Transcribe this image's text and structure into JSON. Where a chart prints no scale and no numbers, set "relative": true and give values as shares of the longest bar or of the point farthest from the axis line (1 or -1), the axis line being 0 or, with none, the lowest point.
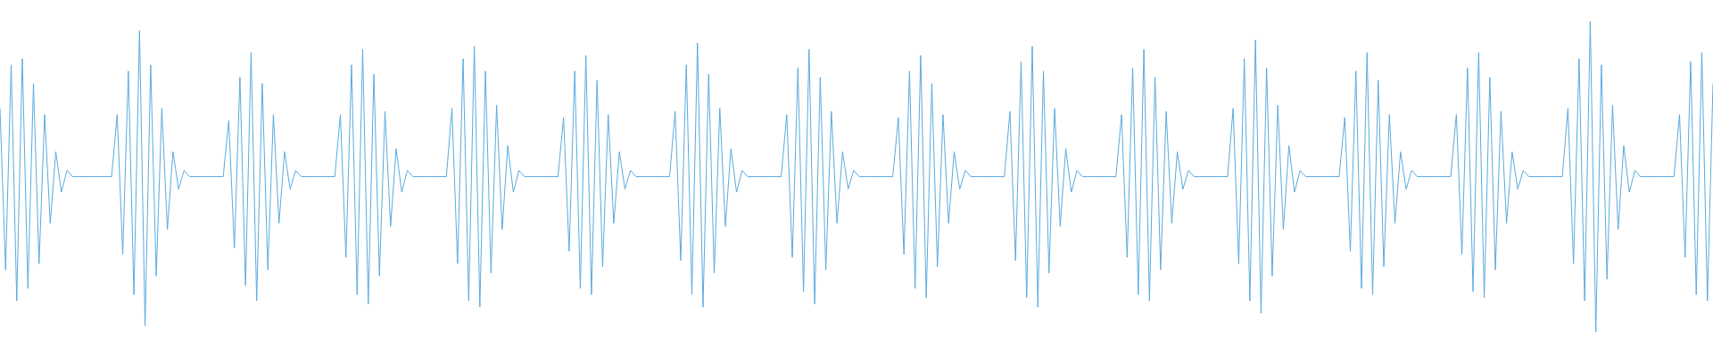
{
  "chart_data": {
    "type": "line",
    "relative": true,
    "color": "#5aaae0",
    "marker": "none",
    "line_style": "solid",
    "legend": false,
    "categories": [
      null,
      null,
      null,
      null,
      null,
      null,
      null,
      null,
      null,
      null,
      null,
      null,
      null,
      null,
      null,
      null,
      null,
      null,
      null,
      null,
      null,
      null,
      null,
      null,
      null,
      null,
      null,
      null,
      null,
      null,
      null,
      null,
      null,
      null,
      null,
      null,
      null,
      null,
      null,
      null,
      null,
      null,
      null,
      null,
      null,
      null,
      null,
      null,
      null,
      null,
      null,
      null,
      null,
      null,
      null,
      null,
      null,
      null,
      null,
      null,
      null,
      null,
      null,
      null,
      null,
      null,
      null,
      null,
      null,
      null,
      null,
      null,
      null,
      null,
      null,
      null,
      null,
      null,
      null,
      null,
      null,
      null,
      null,
      null,
      null,
      null,
      null,
      null,
      null,
      null,
      null,
      null,
      null,
      null,
      null,
      null,
      null,
      null,
      null,
      null,
      null,
      null,
      null,
      null,
      null,
      null,
      null,
      null,
      null,
      null,
      null,
      null,
      null,
      null,
      null,
      null,
      null,
      null,
      null,
      null,
      null,
      null,
      null,
      null,
      null,
      null,
      null,
      null,
      null,
      null,
      null,
      null,
      null,
      null,
      null,
      null,
      null,
      null,
      null,
      null,
      null,
      null,
      null,
      null,
      null,
      null,
      null,
      null,
      null,
      null,
      null,
      null,
      null,
      null,
      null,
      null,
      null,
      null,
      null,
      null,
      null,
      null,
      null,
      null,
      null,
      null,
      null,
      null,
      null,
      null,
      null,
      null,
      null,
      null,
      null,
      null,
      null,
      null,
      null,
      null,
      null,
      null,
      null,
      null,
      null,
      null,
      null,
      null,
      null,
      null,
      null,
      null,
      null,
      null,
      null,
      null,
      null,
      null,
      null,
      null,
      null,
      null,
      null,
      null,
      null,
      null,
      null,
      null,
      null,
      null,
      null,
      null,
      null,
      null,
      null,
      null,
      null,
      null,
      null,
      null,
      null,
      null,
      null,
      null,
      null,
      null,
      null,
      null,
      null,
      null,
      null,
      null,
      null,
      null,
      null,
      null,
      null,
      null,
      null,
      null,
      null,
      null,
      null,
      null,
      null,
      null,
      null,
      null,
      null,
      null,
      null,
      null,
      null,
      null,
      null,
      null,
      null,
      null,
      null,
      null,
      null,
      null,
      null,
      null,
      null,
      null,
      null,
      null,
      null,
      null,
      null,
      null,
      null,
      null,
      null,
      null,
      null,
      null,
      null,
      null,
      null,
      null,
      null,
      null,
      null,
      null,
      null,
      null,
      null,
      null,
      null,
      null,
      null,
      null,
      null,
      null,
      null,
      null,
      null,
      null,
      null,
      null,
      null,
      null,
      null,
      null,
      null,
      null
    ],
    "values": [
      0.72,
      0.2,
      0.86,
      0.1,
      0.88,
      0.14,
      0.8,
      0.22,
      0.7,
      0.35,
      0.58,
      0.45,
      0.52,
      0.5,
      0.5,
      0.5,
      0.5,
      0.5,
      0.5,
      0.5,
      0.5,
      0.7,
      0.25,
      0.84,
      0.12,
      0.97,
      0.02,
      0.86,
      0.18,
      0.72,
      0.33,
      0.58,
      0.46,
      0.52,
      0.5,
      0.5,
      0.5,
      0.5,
      0.5,
      0.5,
      0.5,
      0.68,
      0.27,
      0.82,
      0.15,
      0.9,
      0.1,
      0.8,
      0.2,
      0.7,
      0.35,
      0.58,
      0.46,
      0.52,
      0.5,
      0.5,
      0.5,
      0.5,
      0.5,
      0.5,
      0.5,
      0.7,
      0.24,
      0.86,
      0.12,
      0.91,
      0.09,
      0.83,
      0.18,
      0.71,
      0.34,
      0.59,
      0.45,
      0.52,
      0.5,
      0.5,
      0.5,
      0.5,
      0.5,
      0.5,
      0.5,
      0.72,
      0.22,
      0.88,
      0.1,
      0.92,
      0.08,
      0.84,
      0.19,
      0.73,
      0.33,
      0.6,
      0.45,
      0.52,
      0.5,
      0.5,
      0.5,
      0.5,
      0.5,
      0.5,
      0.5,
      0.69,
      0.26,
      0.84,
      0.14,
      0.89,
      0.12,
      0.81,
      0.21,
      0.7,
      0.35,
      0.58,
      0.46,
      0.52,
      0.5,
      0.5,
      0.5,
      0.5,
      0.5,
      0.5,
      0.5,
      0.71,
      0.23,
      0.86,
      0.12,
      0.93,
      0.08,
      0.83,
      0.19,
      0.72,
      0.34,
      0.59,
      0.45,
      0.52,
      0.5,
      0.5,
      0.5,
      0.5,
      0.5,
      0.5,
      0.5,
      0.7,
      0.24,
      0.85,
      0.13,
      0.91,
      0.09,
      0.82,
      0.2,
      0.71,
      0.35,
      0.58,
      0.46,
      0.52,
      0.5,
      0.5,
      0.5,
      0.5,
      0.5,
      0.5,
      0.5,
      0.69,
      0.25,
      0.84,
      0.14,
      0.89,
      0.11,
      0.8,
      0.21,
      0.7,
      0.35,
      0.58,
      0.46,
      0.52,
      0.5,
      0.5,
      0.5,
      0.5,
      0.5,
      0.5,
      0.5,
      0.71,
      0.23,
      0.87,
      0.11,
      0.92,
      0.08,
      0.84,
      0.19,
      0.72,
      0.34,
      0.59,
      0.45,
      0.52,
      0.5,
      0.5,
      0.5,
      0.5,
      0.5,
      0.5,
      0.5,
      0.7,
      0.24,
      0.85,
      0.12,
      0.91,
      0.1,
      0.82,
      0.2,
      0.71,
      0.35,
      0.58,
      0.46,
      0.52,
      0.5,
      0.5,
      0.5,
      0.5,
      0.5,
      0.5,
      0.5,
      0.72,
      0.22,
      0.88,
      0.1,
      0.94,
      0.06,
      0.85,
      0.18,
      0.73,
      0.33,
      0.6,
      0.45,
      0.52,
      0.5,
      0.5,
      0.5,
      0.5,
      0.5,
      0.5,
      0.5,
      0.69,
      0.26,
      0.84,
      0.14,
      0.9,
      0.12,
      0.81,
      0.21,
      0.7,
      0.35,
      0.58,
      0.46,
      0.52,
      0.5,
      0.5,
      0.5,
      0.5,
      0.5,
      0.5,
      0.5,
      0.7,
      0.25,
      0.85,
      0.13,
      0.9,
      0.11,
      0.82,
      0.2,
      0.71,
      0.35,
      0.58,
      0.46,
      0.52,
      0.5,
      0.5,
      0.5,
      0.5,
      0.5,
      0.5,
      0.5,
      0.72,
      0.22,
      0.88,
      0.1,
      1.0,
      0.0,
      0.86,
      0.17,
      0.73,
      0.33,
      0.6,
      0.45,
      0.52,
      0.5,
      0.5,
      0.5,
      0.5,
      0.5,
      0.5,
      0.5,
      0.7,
      0.24,
      0.87,
      0.12,
      0.9,
      0.1,
      0.8
    ]
  }
}
